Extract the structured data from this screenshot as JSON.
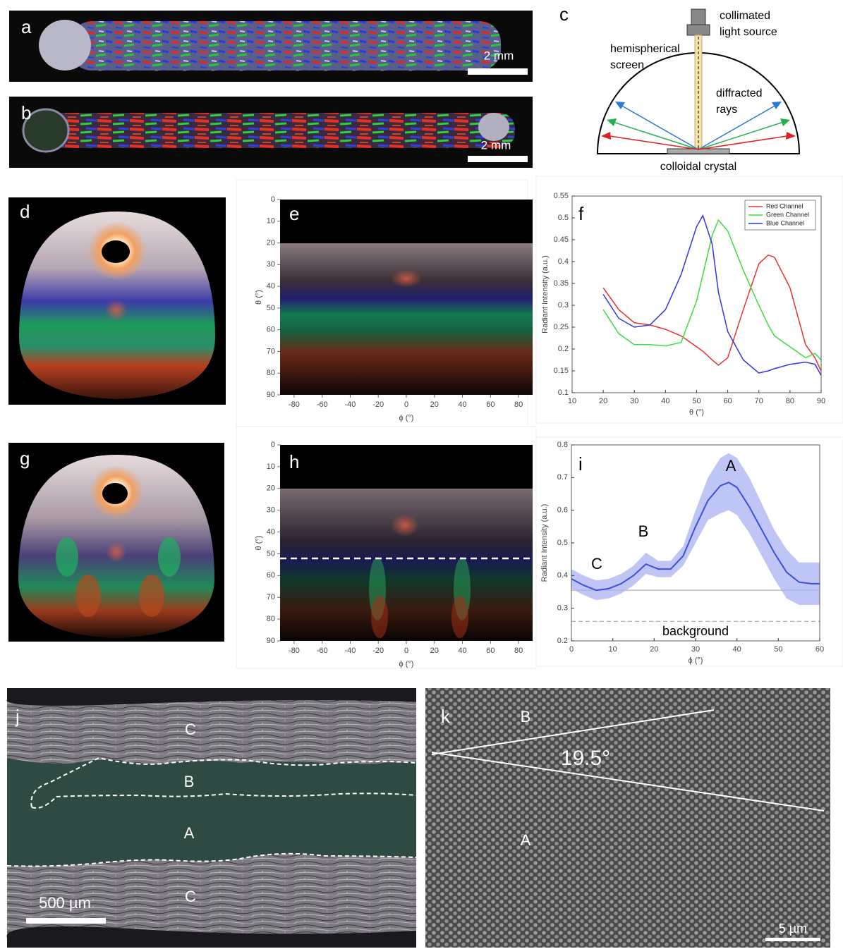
{
  "panels": {
    "a": {
      "label": "a",
      "scale_bar": "2 mm"
    },
    "b": {
      "label": "b",
      "scale_bar": "2 mm"
    },
    "c": {
      "label": "c",
      "source": [
        "collimated",
        "light source"
      ],
      "screen": [
        "hemispherical",
        "screen"
      ],
      "rays": [
        "diffracted",
        "rays"
      ],
      "crystal": "colloidal crystal"
    },
    "d": {
      "label": "d"
    },
    "e": {
      "label": "e",
      "xlabel": "ϕ (°)",
      "ylabel": "θ (°)",
      "xlim": [
        -90,
        90
      ],
      "ylim": [
        0,
        90
      ],
      "xticks": [
        -80,
        -60,
        -40,
        -20,
        0,
        20,
        40,
        60,
        80
      ],
      "yticks": [
        0,
        10,
        20,
        30,
        40,
        50,
        60,
        70,
        80,
        90
      ]
    },
    "f": {
      "label": "f"
    },
    "g": {
      "label": "g"
    },
    "h": {
      "label": "h",
      "xlabel": "ϕ (°)",
      "ylabel": "θ (°)",
      "xlim": [
        -90,
        90
      ],
      "ylim": [
        0,
        90
      ],
      "xticks": [
        -80,
        -60,
        -40,
        -20,
        0,
        20,
        40,
        60,
        80
      ],
      "yticks": [
        0,
        10,
        20,
        30,
        40,
        50,
        60,
        70,
        80,
        90
      ]
    },
    "i": {
      "label": "i",
      "annotations": [
        "A",
        "B",
        "C",
        "background"
      ]
    },
    "j": {
      "label": "j",
      "regions": [
        "C",
        "B",
        "A",
        "C"
      ],
      "scale_bar": "500 µm"
    },
    "k": {
      "label": "k",
      "regions": [
        "B",
        "A"
      ],
      "angle": "19.5°",
      "scale_bar": "5 µm"
    }
  },
  "chart_data": [
    {
      "type": "line",
      "xlabel": "θ (°)",
      "ylabel": "Radiant Intensity (a.u.)",
      "x": [
        20,
        25,
        30,
        35,
        40,
        45,
        50,
        52,
        55,
        57,
        60,
        65,
        70,
        73,
        75,
        80,
        85,
        88,
        90
      ],
      "series": [
        {
          "name": "Red Channel",
          "color": "#e8312f",
          "values": [
            0.34,
            0.29,
            0.26,
            0.255,
            0.245,
            0.23,
            0.205,
            0.195,
            0.175,
            0.163,
            0.18,
            0.29,
            0.395,
            0.415,
            0.41,
            0.34,
            0.21,
            0.18,
            0.15
          ]
        },
        {
          "name": "Green Channel",
          "color": "#3fdc3f",
          "values": [
            0.29,
            0.235,
            0.21,
            0.21,
            0.207,
            0.215,
            0.31,
            0.37,
            0.46,
            0.495,
            0.47,
            0.38,
            0.3,
            0.255,
            0.23,
            0.205,
            0.18,
            0.19,
            0.175
          ]
        },
        {
          "name": "Blue Channel",
          "color": "#3232e6",
          "values": [
            0.325,
            0.27,
            0.25,
            0.255,
            0.29,
            0.37,
            0.48,
            0.505,
            0.44,
            0.33,
            0.24,
            0.175,
            0.145,
            0.15,
            0.155,
            0.165,
            0.17,
            0.165,
            0.14
          ]
        }
      ],
      "xlim": [
        10,
        90
      ],
      "ylim": [
        0.1,
        0.55
      ],
      "xticks": [
        10,
        20,
        30,
        40,
        50,
        60,
        70,
        80,
        90
      ],
      "yticks": [
        0.1,
        0.15,
        0.2,
        0.25,
        0.3,
        0.35,
        0.4,
        0.45,
        0.5,
        0.55
      ],
      "legend": "top-right"
    },
    {
      "type": "line",
      "xlabel": "ϕ (°)",
      "ylabel": "Radiant Intensity (a.u.)",
      "x": [
        0,
        3,
        6,
        9,
        12,
        15,
        18,
        21,
        24,
        27,
        30,
        33,
        36,
        38,
        40,
        43,
        46,
        49,
        52,
        55,
        58,
        60
      ],
      "series": [
        {
          "color": "#3b4fe0",
          "band_color": "#aab3f2",
          "values": [
            0.39,
            0.37,
            0.355,
            0.36,
            0.375,
            0.4,
            0.435,
            0.42,
            0.42,
            0.46,
            0.55,
            0.63,
            0.675,
            0.685,
            0.67,
            0.61,
            0.54,
            0.47,
            0.41,
            0.38,
            0.375,
            0.375
          ],
          "lower": [
            0.36,
            0.34,
            0.325,
            0.33,
            0.345,
            0.37,
            0.405,
            0.395,
            0.395,
            0.43,
            0.5,
            0.57,
            0.59,
            0.6,
            0.585,
            0.53,
            0.46,
            0.39,
            0.33,
            0.31,
            0.31,
            0.31
          ],
          "upper": [
            0.42,
            0.4,
            0.385,
            0.39,
            0.405,
            0.43,
            0.47,
            0.445,
            0.445,
            0.49,
            0.6,
            0.7,
            0.76,
            0.775,
            0.76,
            0.7,
            0.62,
            0.54,
            0.48,
            0.44,
            0.44,
            0.44
          ]
        }
      ],
      "reference_lines": [
        {
          "value": 0.355,
          "style": "solid"
        },
        {
          "value": 0.26,
          "style": "dashed"
        }
      ],
      "xlim": [
        0,
        60
      ],
      "ylim": [
        0.2,
        0.8
      ],
      "xticks": [
        0,
        10,
        20,
        30,
        40,
        50,
        60
      ],
      "yticks": [
        0.2,
        0.3,
        0.4,
        0.5,
        0.6,
        0.7,
        0.8
      ]
    }
  ]
}
